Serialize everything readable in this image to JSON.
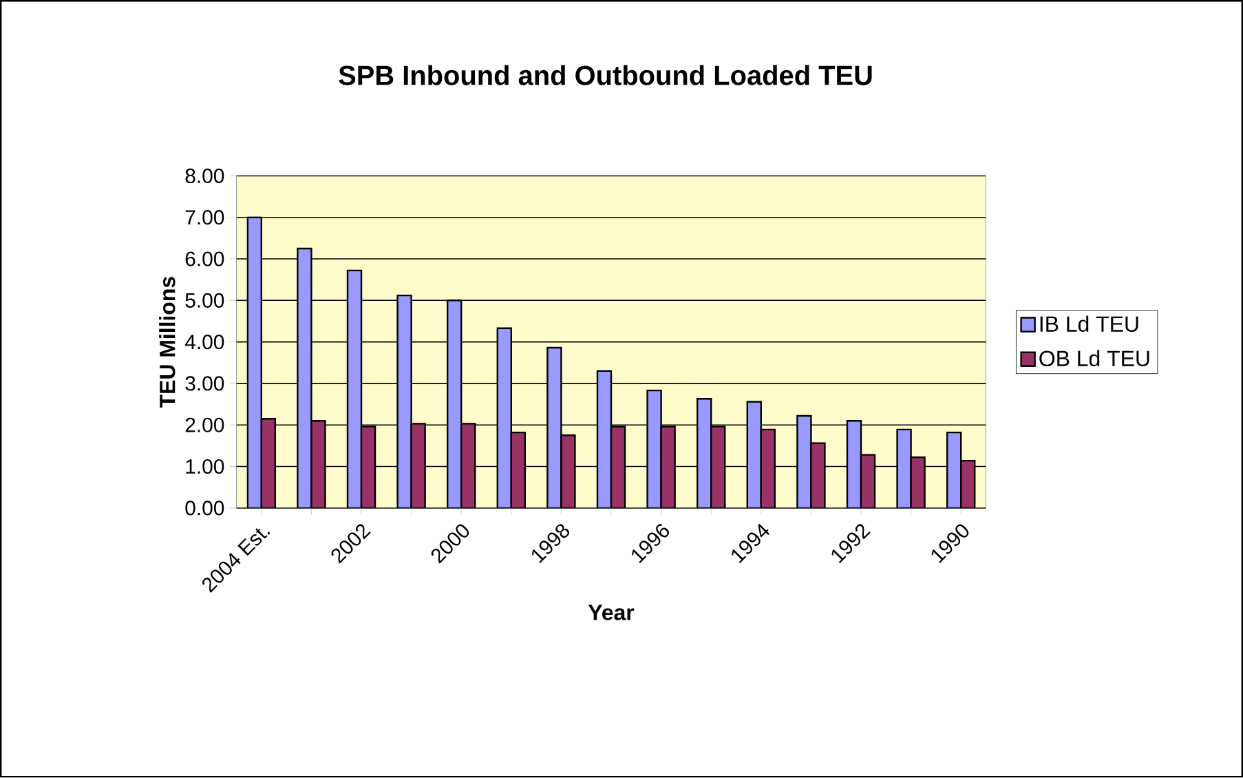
{
  "chart_data": {
    "type": "bar",
    "title": "SPB Inbound and Outbound Loaded TEU",
    "xlabel": "Year",
    "ylabel": "TEU Millions",
    "categories": [
      "2004 Est.",
      null,
      "2002",
      null,
      "2000",
      null,
      "1998",
      null,
      "1996",
      null,
      "1994",
      null,
      "1992",
      null,
      "1990"
    ],
    "series": [
      {
        "name": "IB Ld TEU",
        "color": "#9999ff",
        "values": [
          7.0,
          6.25,
          5.72,
          5.12,
          5.0,
          4.33,
          3.86,
          3.3,
          2.83,
          2.63,
          2.56,
          2.22,
          2.1,
          1.89,
          1.82
        ]
      },
      {
        "name": "OB Ld TEU",
        "color": "#993366",
        "values": [
          2.15,
          2.1,
          1.96,
          2.03,
          2.03,
          1.82,
          1.75,
          1.96,
          1.96,
          1.96,
          1.89,
          1.56,
          1.28,
          1.22,
          1.14
        ]
      }
    ],
    "ylim": [
      0,
      8
    ],
    "yticks": [
      {
        "value": 0,
        "label": "0.00"
      },
      {
        "value": 1,
        "label": "1.00"
      },
      {
        "value": 2,
        "label": "2.00"
      },
      {
        "value": 3,
        "label": "3.00"
      },
      {
        "value": 4,
        "label": "4.00"
      },
      {
        "value": 5,
        "label": "5.00"
      },
      {
        "value": 6,
        "label": "6.00"
      },
      {
        "value": 7,
        "label": "7.00"
      },
      {
        "value": 8,
        "label": "8.00"
      }
    ],
    "grid": "y",
    "legend": "right"
  }
}
